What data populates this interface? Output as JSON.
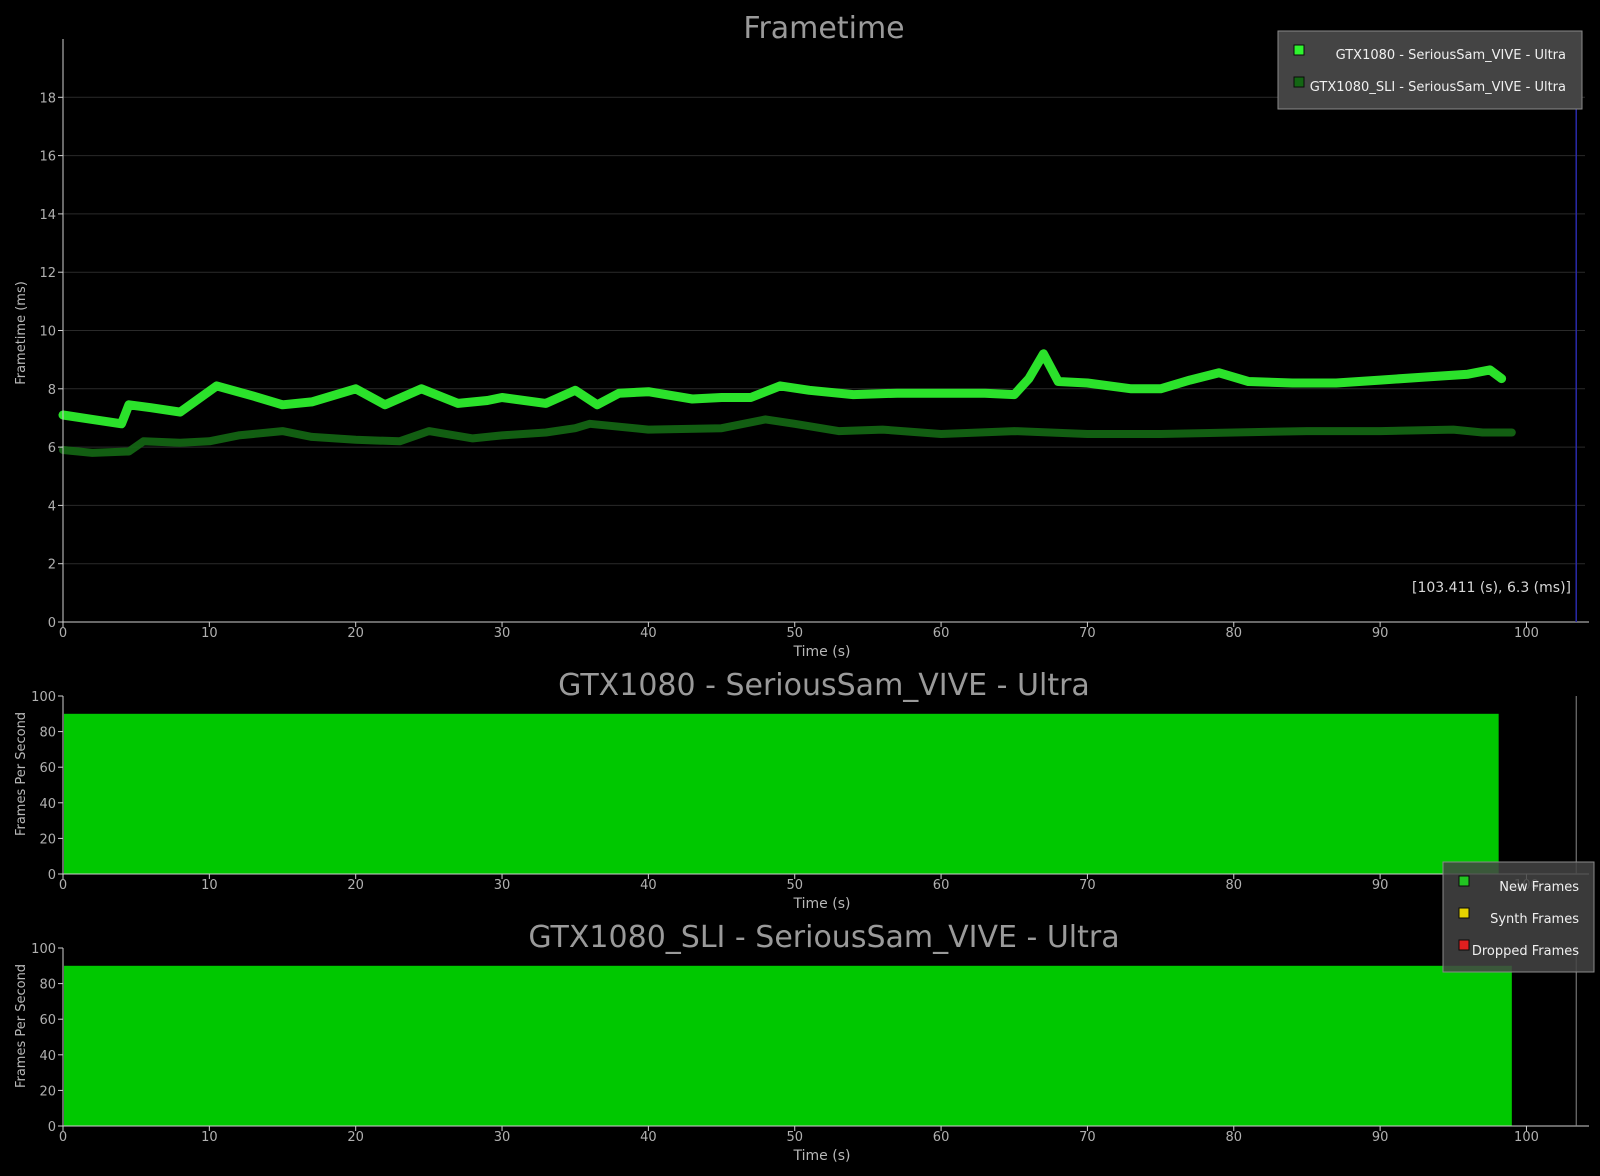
{
  "chart_data": [
    {
      "type": "line",
      "title": "Frametime",
      "xlabel": "Time (s)",
      "ylabel": "Frametime (ms)",
      "xlim": [
        0,
        104
      ],
      "ylim": [
        0,
        20
      ],
      "xticks": [
        0,
        10,
        20,
        30,
        40,
        50,
        60,
        70,
        80,
        90,
        100
      ],
      "yticks": [
        0,
        2,
        4,
        6,
        8,
        10,
        12,
        14,
        16,
        18
      ],
      "grid": "horizontal",
      "legend_position": "top-right",
      "cursor_readout": "[103.411 (s), 6.3 (ms)]",
      "cursor_x": 103.4,
      "series": [
        {
          "name": "GTX1080 - SeriousSam_VIVE - Ultra",
          "color": "#2ff52f",
          "x": [
            0,
            2,
            4,
            4.5,
            6,
            8,
            10.5,
            13,
            15,
            17,
            20,
            22,
            24.5,
            27,
            29,
            30,
            33,
            35,
            36.5,
            38,
            40,
            43,
            45,
            47,
            49,
            51,
            54,
            57,
            60,
            63,
            65,
            66,
            67,
            68,
            70,
            73,
            75,
            77,
            79,
            81,
            84,
            87,
            90,
            93,
            96,
            97.5,
            98.3
          ],
          "y": [
            7.1,
            6.95,
            6.8,
            7.45,
            7.35,
            7.2,
            8.1,
            7.75,
            7.45,
            7.55,
            8.0,
            7.45,
            8.0,
            7.5,
            7.6,
            7.7,
            7.5,
            7.95,
            7.45,
            7.85,
            7.9,
            7.65,
            7.7,
            7.7,
            8.1,
            7.95,
            7.8,
            7.85,
            7.85,
            7.85,
            7.8,
            8.35,
            9.2,
            8.25,
            8.2,
            8.0,
            8.0,
            8.3,
            8.55,
            8.25,
            8.2,
            8.2,
            8.3,
            8.4,
            8.5,
            8.65,
            8.35
          ]
        },
        {
          "name": "GTX1080_SLI - SeriousSam_VIVE - Ultra",
          "color": "#136613",
          "x": [
            0,
            2,
            4.5,
            5.5,
            8,
            10,
            12,
            15,
            17,
            20,
            23,
            25,
            28,
            30,
            33,
            35,
            36,
            40,
            45,
            48,
            50,
            53,
            56,
            60,
            65,
            70,
            75,
            80,
            85,
            90,
            95,
            97,
            99
          ],
          "y": [
            5.9,
            5.8,
            5.85,
            6.2,
            6.15,
            6.2,
            6.4,
            6.55,
            6.35,
            6.25,
            6.2,
            6.55,
            6.3,
            6.4,
            6.5,
            6.65,
            6.8,
            6.6,
            6.65,
            6.95,
            6.8,
            6.55,
            6.6,
            6.45,
            6.55,
            6.45,
            6.45,
            6.5,
            6.55,
            6.55,
            6.6,
            6.5,
            6.5
          ]
        }
      ]
    },
    {
      "type": "area",
      "title": "GTX1080 - SeriousSam_VIVE - Ultra",
      "xlabel": "Time (s)",
      "ylabel": "Frames Per Second",
      "xlim": [
        0,
        104
      ],
      "ylim": [
        0,
        100
      ],
      "xticks": [
        0,
        10,
        20,
        30,
        40,
        50,
        60,
        70,
        80,
        90,
        100
      ],
      "yticks": [
        0,
        20,
        40,
        60,
        80,
        100
      ],
      "series": [
        {
          "name": "New Frames",
          "color": "#00c800",
          "x": [
            0,
            98.1
          ],
          "y": [
            90,
            90
          ]
        }
      ]
    },
    {
      "type": "area",
      "title": "GTX1080_SLI - SeriousSam_VIVE - Ultra",
      "xlabel": "Time (s)",
      "ylabel": "Frames Per Second",
      "xlim": [
        0,
        104
      ],
      "ylim": [
        0,
        100
      ],
      "xticks": [
        0,
        10,
        20,
        30,
        40,
        50,
        60,
        70,
        80,
        90,
        100
      ],
      "yticks": [
        0,
        20,
        40,
        60,
        80,
        100
      ],
      "series": [
        {
          "name": "New Frames",
          "color": "#00c800",
          "x": [
            0,
            99.0
          ],
          "y": [
            90,
            90
          ]
        }
      ]
    }
  ],
  "fps_legend": [
    {
      "label": "New Frames",
      "color": "#22c522"
    },
    {
      "label": "Synth Frames",
      "color": "#e6d400"
    },
    {
      "label": "Dropped Frames",
      "color": "#e01f1f"
    }
  ],
  "colors": {
    "background": "#000000",
    "axis": "#cfcfcf",
    "grid": "#2a2a2a",
    "legend_bg": "#444444",
    "cursor_line": "#2a2aa8"
  }
}
